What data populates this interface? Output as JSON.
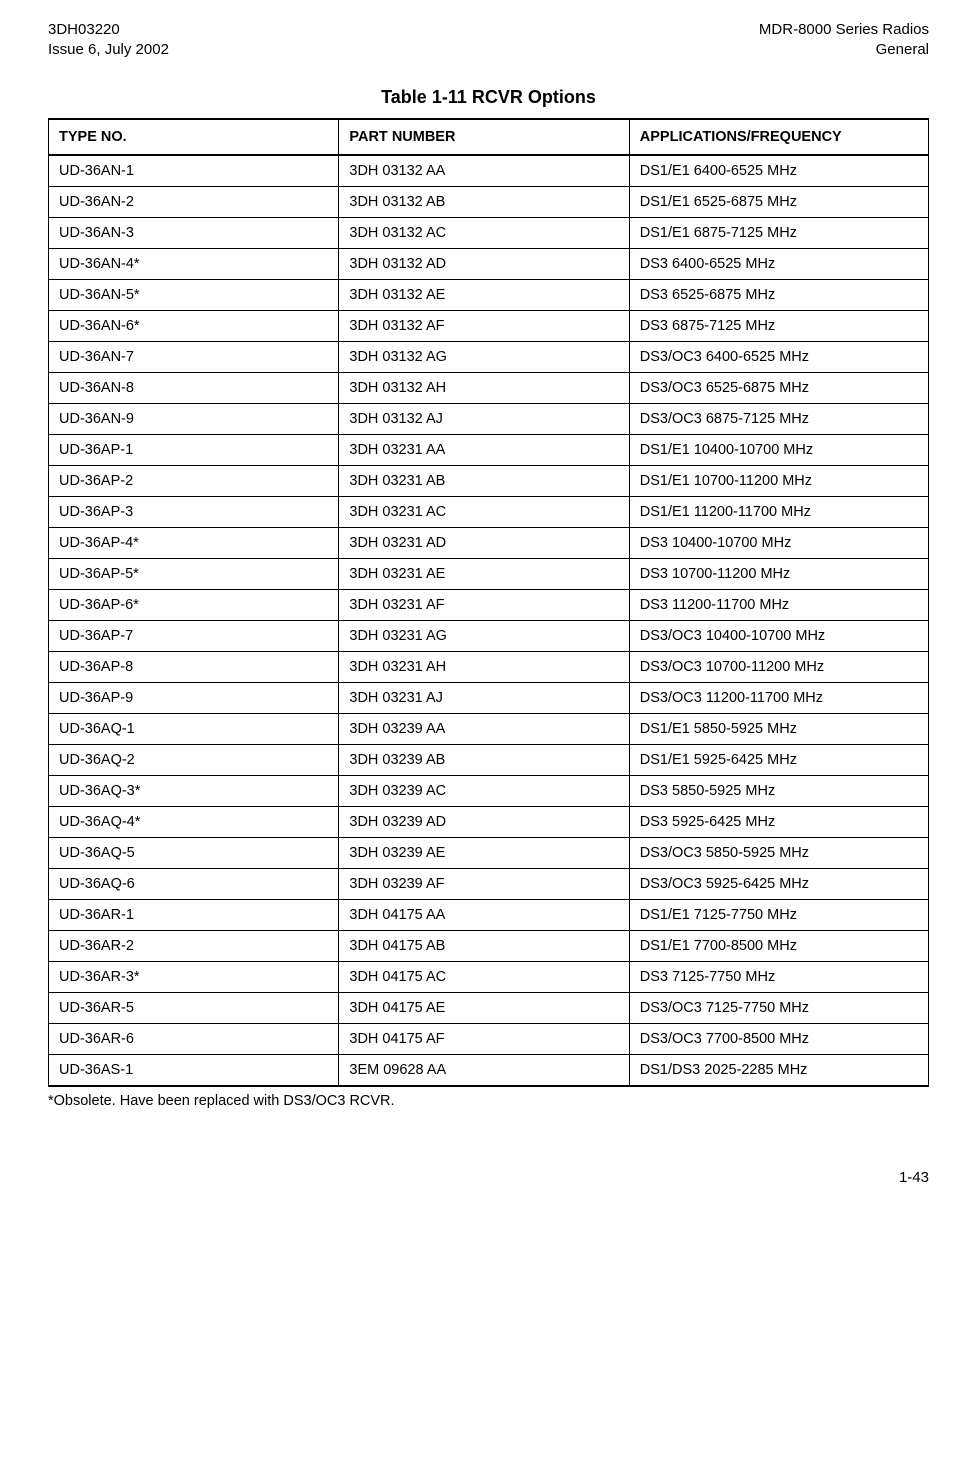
{
  "header": {
    "left_line1": "3DH03220",
    "left_line2": "Issue 6, July 2002",
    "right_line1": "MDR-8000 Series Radios",
    "right_line2": "General"
  },
  "table": {
    "title": "Table 1-11  RCVR Options",
    "columns": [
      "TYPE NO.",
      "PART NUMBER",
      "APPLICATIONS/FREQUENCY"
    ],
    "rows": [
      [
        "UD-36AN-1",
        "3DH 03132 AA",
        "DS1/E1 6400-6525 MHz"
      ],
      [
        "UD-36AN-2",
        "3DH 03132 AB",
        "DS1/E1 6525-6875 MHz"
      ],
      [
        "UD-36AN-3",
        "3DH 03132 AC",
        "DS1/E1 6875-7125 MHz"
      ],
      [
        "UD-36AN-4*",
        "3DH 03132 AD",
        "DS3 6400-6525 MHz"
      ],
      [
        "UD-36AN-5*",
        "3DH 03132 AE",
        "DS3 6525-6875 MHz"
      ],
      [
        "UD-36AN-6*",
        "3DH 03132 AF",
        "DS3 6875-7125 MHz"
      ],
      [
        "UD-36AN-7",
        "3DH 03132 AG",
        "DS3/OC3 6400-6525 MHz"
      ],
      [
        "UD-36AN-8",
        "3DH 03132 AH",
        "DS3/OC3 6525-6875 MHz"
      ],
      [
        "UD-36AN-9",
        "3DH 03132 AJ",
        "DS3/OC3 6875-7125 MHz"
      ],
      [
        "UD-36AP-1",
        "3DH 03231 AA",
        "DS1/E1 10400-10700 MHz"
      ],
      [
        "UD-36AP-2",
        "3DH 03231 AB",
        "DS1/E1 10700-11200 MHz"
      ],
      [
        "UD-36AP-3",
        "3DH 03231 AC",
        "DS1/E1 11200-11700 MHz"
      ],
      [
        "UD-36AP-4*",
        "3DH 03231 AD",
        "DS3 10400-10700 MHz"
      ],
      [
        "UD-36AP-5*",
        "3DH 03231 AE",
        "DS3 10700-11200 MHz"
      ],
      [
        "UD-36AP-6*",
        "3DH 03231 AF",
        "DS3 11200-11700 MHz"
      ],
      [
        "UD-36AP-7",
        "3DH 03231 AG",
        "DS3/OC3 10400-10700 MHz"
      ],
      [
        "UD-36AP-8",
        "3DH 03231 AH",
        "DS3/OC3 10700-11200 MHz"
      ],
      [
        "UD-36AP-9",
        "3DH 03231 AJ",
        "DS3/OC3 11200-11700 MHz"
      ],
      [
        "UD-36AQ-1",
        "3DH 03239 AA",
        "DS1/E1 5850-5925 MHz"
      ],
      [
        "UD-36AQ-2",
        "3DH 03239 AB",
        "DS1/E1 5925-6425 MHz"
      ],
      [
        "UD-36AQ-3*",
        "3DH 03239 AC",
        "DS3 5850-5925 MHz"
      ],
      [
        "UD-36AQ-4*",
        "3DH 03239 AD",
        "DS3 5925-6425 MHz"
      ],
      [
        "UD-36AQ-5",
        "3DH 03239 AE",
        "DS3/OC3 5850-5925 MHz"
      ],
      [
        "UD-36AQ-6",
        "3DH 03239 AF",
        "DS3/OC3 5925-6425 MHz"
      ],
      [
        "UD-36AR-1",
        "3DH 04175 AA",
        "DS1/E1 7125-7750 MHz"
      ],
      [
        "UD-36AR-2",
        "3DH 04175 AB",
        "DS1/E1 7700-8500 MHz"
      ],
      [
        "UD-36AR-3*",
        "3DH 04175 AC",
        "DS3 7125-7750 MHz"
      ],
      [
        "UD-36AR-5",
        "3DH 04175 AE",
        "DS3/OC3 7125-7750 MHz"
      ],
      [
        "UD-36AR-6",
        "3DH 04175 AF",
        "DS3/OC3 7700-8500 MHz"
      ],
      [
        "UD-36AS-1",
        "3EM 09628 AA",
        "DS1/DS3 2025-2285 MHz"
      ]
    ]
  },
  "footnote": "*Obsolete. Have been replaced with DS3/OC3 RCVR.",
  "page_number": "1-43"
}
